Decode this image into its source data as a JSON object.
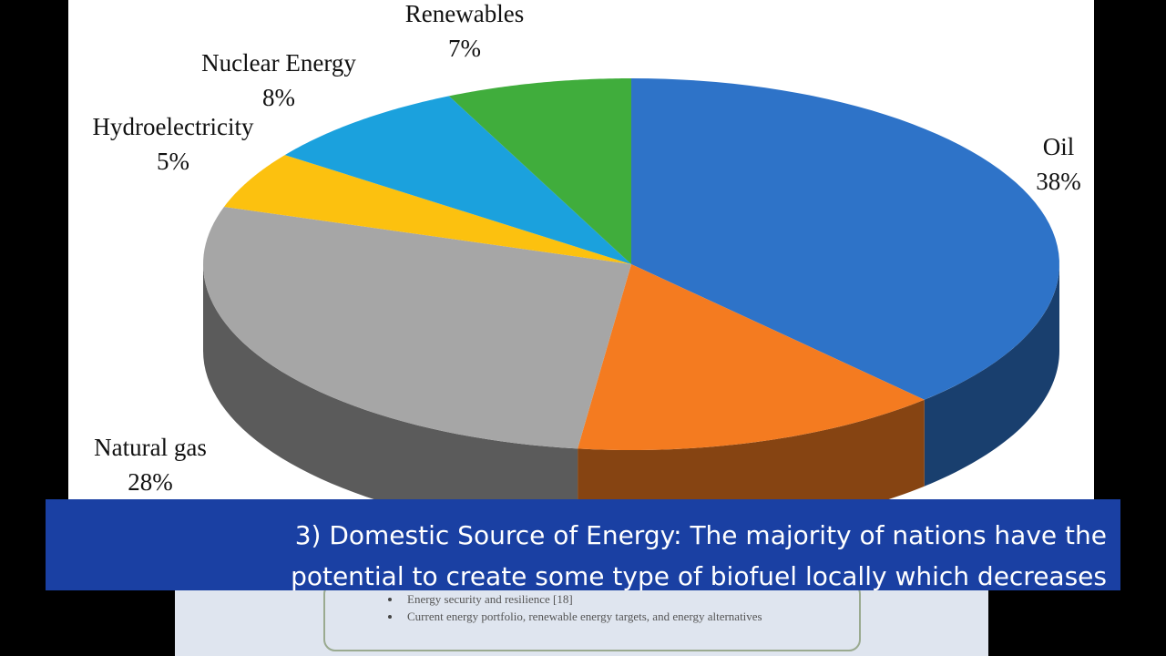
{
  "chart_data": {
    "type": "pie",
    "categories": [
      "Oil",
      null,
      "Natural gas",
      "Hydroelectricity",
      "Nuclear Energy",
      "Renewables"
    ],
    "values": [
      38,
      14,
      28,
      5,
      8,
      7
    ],
    "value_labels": [
      "38%",
      null,
      "28%",
      "5%",
      "8%",
      "7%"
    ],
    "colors": [
      "#2e73c8",
      "#f47b20",
      "#a6a6a6",
      "#fcc10f",
      "#1ba1dd",
      "#40ad3c"
    ]
  },
  "caption": {
    "lines": [
      "3) Domestic Source of Energy: The majority of nations have the",
      "potential to create some type of biofuel locally which decreases"
    ]
  },
  "document_snippet": {
    "bullets": [
      "Energy security and resilience [18]",
      "Current energy portfolio, renewable energy targets, and energy alternatives"
    ]
  }
}
